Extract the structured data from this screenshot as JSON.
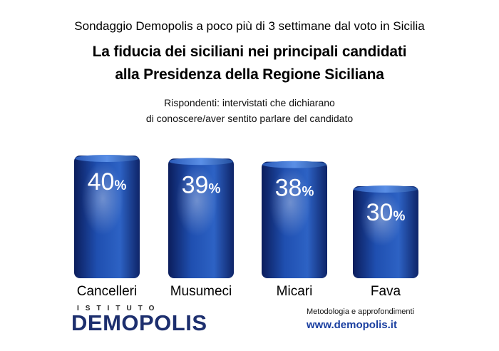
{
  "header": {
    "top_title": "Sondaggio Demopolis a poco più di 3 settimane dal voto in Sicilia",
    "headline_line1": "La fiducia dei siciliani nei principali candidati",
    "headline_line2": "alla Presidenza della Regione Siciliana",
    "subtitle_line1": "Rispondenti: intervistati che dichiarano",
    "subtitle_line2": "di conoscere/aver sentito parlare del candidato"
  },
  "chart_data": {
    "type": "bar",
    "categories": [
      "Cancelleri",
      "Musumeci",
      "Micari",
      "Fava"
    ],
    "values": [
      40,
      39,
      38,
      30
    ],
    "value_suffix": "%",
    "title": "La fiducia dei siciliani nei principali candidati alla Presidenza della Regione Siciliana",
    "xlabel": "",
    "ylabel": "",
    "grid": false,
    "colors": {
      "bar_dark": "#0b1d5c",
      "bar_mid": "#1f4fb0",
      "bar_light": "#4f86e0"
    }
  },
  "footer": {
    "logo_top": "ISTITUTO",
    "logo_main": "DEMOPOLIS",
    "methodology": "Metodologia e approfondimenti",
    "website": "www.demopolis.it"
  }
}
